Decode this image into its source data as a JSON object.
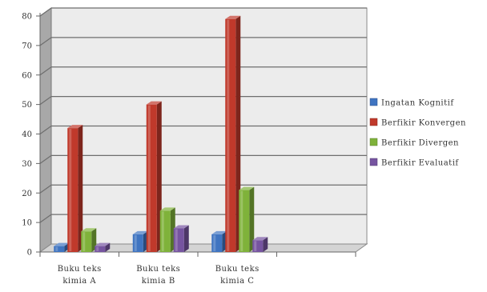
{
  "chart_data": {
    "type": "bar",
    "title": "",
    "xlabel": "",
    "ylabel": "",
    "categories": [
      "Buku teks kimia A",
      "Buku teks kimia B",
      "Buku teks kimia C",
      ""
    ],
    "category_lines": [
      [
        "Buku teks",
        "kimia A"
      ],
      [
        "Buku teks",
        "kimia B"
      ],
      [
        "Buku teks",
        "kimia C"
      ],
      [
        "",
        ""
      ]
    ],
    "ylim": [
      0,
      80
    ],
    "yticks": [
      0,
      10,
      20,
      30,
      40,
      50,
      60,
      70,
      80
    ],
    "grid": true,
    "legend_position": "right",
    "series": [
      {
        "name": "Ingatan Kognitif",
        "color": "#3f74c1",
        "values": [
          2,
          6,
          6,
          null
        ]
      },
      {
        "name": "Berfikir Konvergen",
        "color": "#c0392b",
        "values": [
          42,
          50,
          79,
          null
        ]
      },
      {
        "name": "Berfikir Divergen",
        "color": "#7fb23a",
        "values": [
          7,
          14,
          21,
          null
        ]
      },
      {
        "name": "Berfikir Evaluatif",
        "color": "#7654a0",
        "values": [
          2,
          8,
          4,
          null
        ]
      }
    ]
  }
}
